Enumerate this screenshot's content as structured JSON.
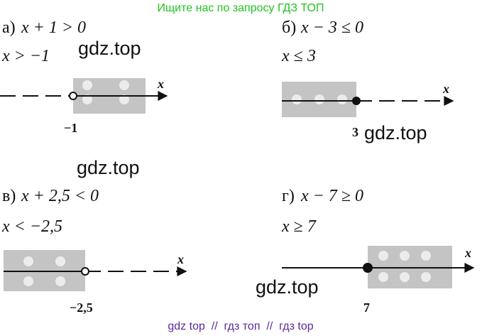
{
  "header": "Ищите нас по запросу ГДЗ ТОП",
  "problems": [
    {
      "label": "а)",
      "inequality": "x + 1 > 0",
      "solution": "x > −1",
      "axis_label": "x",
      "point_label": "−1"
    },
    {
      "label": "б)",
      "inequality": "x − 3 ≤ 0",
      "solution": "x ≤ 3",
      "axis_label": "x",
      "point_label": "3"
    },
    {
      "label": "в)",
      "inequality": "x + 2,5 < 0",
      "solution": "x < −2,5",
      "axis_label": "x",
      "point_label": "−2,5"
    },
    {
      "label": "г)",
      "inequality": "x − 7 ≥ 0",
      "solution": "x ≥ 7",
      "axis_label": "x",
      "point_label": "7"
    }
  ],
  "watermarks": [
    "gdz.top",
    "gdz.top",
    "gdz.top",
    "gdz.top"
  ],
  "footer": "gdz top  //  гдз топ  //  гдз top"
}
